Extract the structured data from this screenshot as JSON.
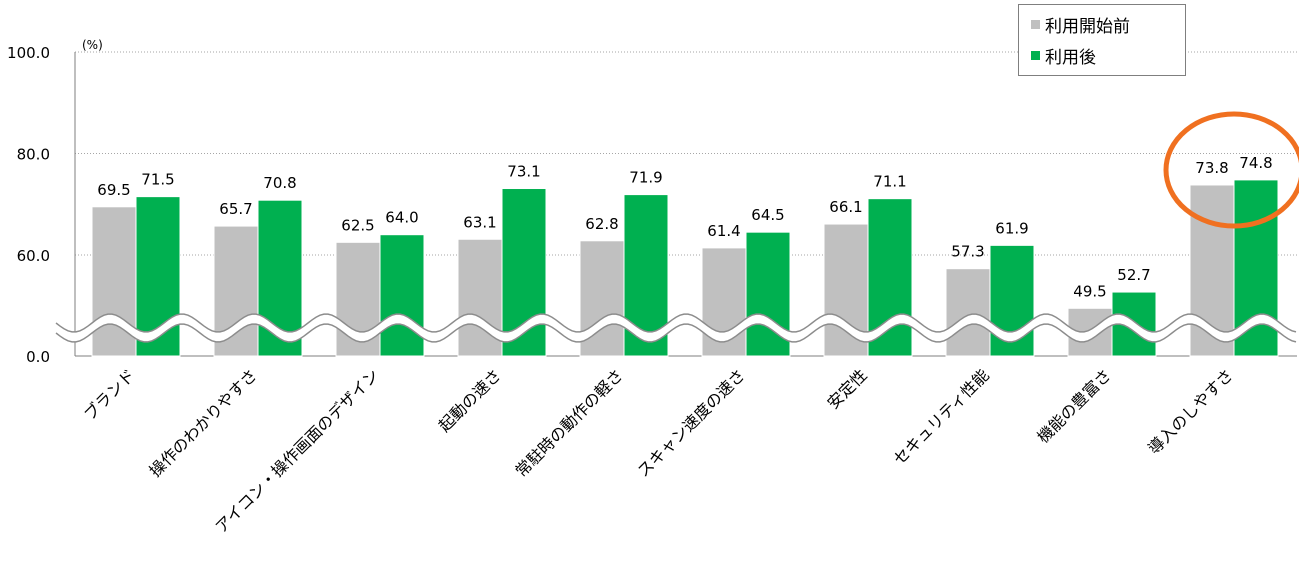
{
  "chart_data": {
    "type": "bar",
    "unit_label": "(%)",
    "y_ticks": [
      "100.0",
      "80.0",
      "60.0",
      "0.0"
    ],
    "ylim": [
      0,
      100
    ],
    "axis_break": true,
    "grid": "dotted horizontal",
    "legend_position": "top-right",
    "categories": [
      "ブランド",
      "操作のわかりやすさ",
      "アイコン・操作画面のデザイン",
      "起動の速さ",
      "常駐時の動作の軽さ",
      "スキャン速度の速さ",
      "安定性",
      "セキュリティ性能",
      "機能の豊富さ",
      "導入のしやすさ"
    ],
    "series": [
      {
        "name": "利用開始前",
        "color": "#c0c0c0",
        "values": [
          69.5,
          65.7,
          62.5,
          63.1,
          62.8,
          61.4,
          66.1,
          57.3,
          49.5,
          73.8
        ]
      },
      {
        "name": "利用後",
        "color": "#00b050",
        "values": [
          71.5,
          70.8,
          64.0,
          73.1,
          71.9,
          64.5,
          71.1,
          61.9,
          52.7,
          74.8
        ]
      }
    ],
    "highlight": {
      "category": "導入のしやすさ",
      "color": "#f07020",
      "shape": "circle"
    }
  },
  "legend": {
    "before_label": "利用開始前",
    "after_label": "利用後"
  }
}
